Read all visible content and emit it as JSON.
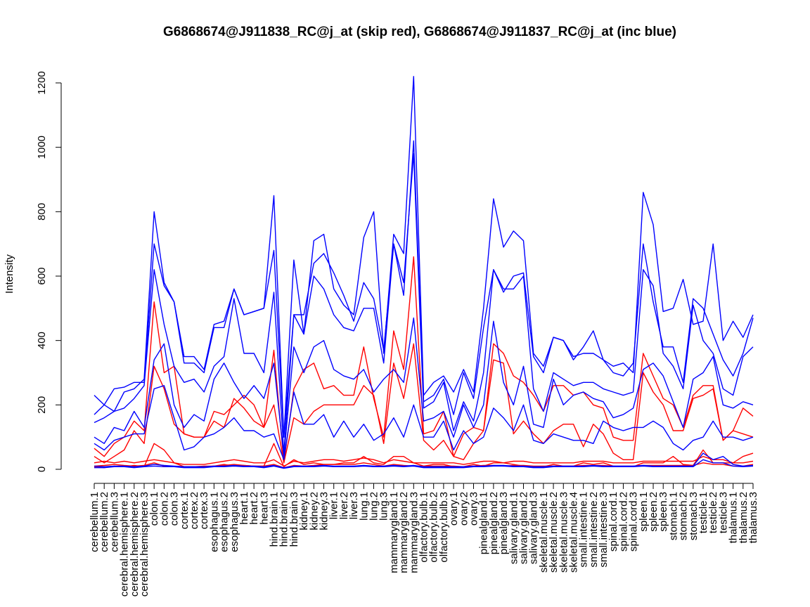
{
  "chart_data": {
    "type": "line",
    "title": "G6868674@J911838_RC@j_at (skip red), G6868674@J911837_RC@j_at (inc blue)",
    "xlabel": "",
    "ylabel": "Intensity",
    "ylim": [
      0,
      1200
    ],
    "yticks": [
      0,
      200,
      400,
      600,
      800,
      1000,
      1200
    ],
    "grid": false,
    "legend": "none",
    "colors": {
      "skip": "#ff0000",
      "inc": "#0000ff",
      "axis": "#000000"
    },
    "categories": [
      "cerebellum.1",
      "cerebellum.2",
      "cerebellum.3",
      "cerebral.hemisphere.1",
      "cerebral.hemisphere.2",
      "cerebral.hemisphere.3",
      "colon.1",
      "colon.2",
      "colon.3",
      "cortex.1",
      "cortex.2",
      "cortex.3",
      "esophagus.1",
      "esophagus.2",
      "esophagus.3",
      "heart.1",
      "heart.2",
      "heart.3",
      "hind.brain.1",
      "hind.brain.2",
      "hind.brain.3",
      "kidney.1",
      "kidney.2",
      "kidney.3",
      "liver.1",
      "liver.2",
      "liver.3",
      "lung.1",
      "lung.2",
      "lung.3",
      "mammarygland.1",
      "mammarygland.2",
      "mammarygland.3",
      "olfactory.bulb.1",
      "olfactory.bulb.2",
      "olfactory.bulb.3",
      "ovary.1",
      "ovary.2",
      "ovary.3",
      "pinealgland.1",
      "pinealgland.2",
      "pinealgland.3",
      "salivary.gland.1",
      "salivary.gland.2",
      "salivary.gland.3",
      "skeletal.muscle.1",
      "skeletal.muscle.2",
      "skeletal.muscle.3",
      "skeletal.muscle.4",
      "small.intestine.1",
      "small.intestine.2",
      "small.intestine.3",
      "spinal.cord.1",
      "spinal.cord.2",
      "spinal.cord.3",
      "spleen.1",
      "spleen.2",
      "spleen.3",
      "stomach.1",
      "stomach.2",
      "stomach.3",
      "testicle.1",
      "testicle.2",
      "testicle.3",
      "thalamus.1",
      "thalamus.2",
      "thalamus.3"
    ],
    "series": [
      {
        "group": "skip",
        "values": [
          10,
          12,
          15,
          12,
          10,
          12,
          20,
          10,
          8,
          8,
          8,
          8,
          10,
          12,
          15,
          12,
          10,
          10,
          15,
          5,
          12,
          10,
          12,
          15,
          15,
          15,
          15,
          20,
          15,
          10,
          15,
          12,
          10,
          10,
          10,
          10,
          10,
          8,
          10,
          12,
          12,
          10,
          12,
          12,
          10,
          10,
          10,
          10,
          10,
          12,
          12,
          12,
          10,
          10,
          10,
          12,
          12,
          12,
          12,
          12,
          12,
          20,
          15,
          15,
          10,
          10,
          15
        ]
      },
      {
        "group": "skip",
        "values": [
          20,
          25,
          20,
          25,
          20,
          25,
          30,
          25,
          20,
          15,
          15,
          15,
          20,
          25,
          30,
          25,
          20,
          20,
          30,
          10,
          25,
          20,
          25,
          30,
          30,
          25,
          30,
          35,
          30,
          20,
          30,
          25,
          20,
          20,
          20,
          20,
          20,
          15,
          20,
          25,
          25,
          20,
          25,
          25,
          20,
          20,
          20,
          20,
          20,
          25,
          25,
          25,
          20,
          20,
          20,
          25,
          25,
          25,
          25,
          25,
          25,
          40,
          30,
          30,
          20,
          20,
          25
        ]
      },
      {
        "group": "skip",
        "values": [
          40,
          20,
          40,
          60,
          120,
          80,
          320,
          250,
          140,
          110,
          100,
          100,
          150,
          130,
          220,
          190,
          150,
          130,
          200,
          20,
          160,
          140,
          180,
          200,
          200,
          200,
          200,
          260,
          230,
          80,
          330,
          220,
          390,
          90,
          60,
          90,
          40,
          30,
          80,
          120,
          340,
          330,
          110,
          150,
          110,
          80,
          120,
          140,
          140,
          70,
          140,
          110,
          50,
          30,
          30,
          300,
          240,
          200,
          120,
          120,
          220,
          230,
          250,
          90,
          120,
          110,
          100
        ]
      },
      {
        "group": "skip",
        "values": [
          65,
          40,
          80,
          100,
          150,
          120,
          520,
          300,
          320,
          110,
          100,
          100,
          180,
          170,
          200,
          230,
          200,
          130,
          370,
          20,
          250,
          310,
          330,
          250,
          260,
          230,
          230,
          380,
          220,
          100,
          430,
          310,
          660,
          110,
          120,
          180,
          40,
          110,
          130,
          120,
          390,
          360,
          290,
          270,
          230,
          180,
          260,
          260,
          230,
          240,
          200,
          190,
          100,
          90,
          90,
          360,
          290,
          220,
          200,
          130,
          230,
          260,
          260,
          90,
          120,
          190,
          165
        ]
      },
      {
        "group": "skip",
        "values": [
          8,
          5,
          10,
          8,
          12,
          8,
          80,
          60,
          20,
          8,
          8,
          10,
          10,
          15,
          10,
          12,
          10,
          10,
          80,
          8,
          30,
          15,
          20,
          15,
          15,
          20,
          20,
          40,
          20,
          15,
          40,
          40,
          20,
          10,
          15,
          15,
          8,
          8,
          15,
          10,
          20,
          20,
          15,
          10,
          8,
          8,
          15,
          10,
          10,
          20,
          15,
          20,
          10,
          8,
          8,
          20,
          20,
          20,
          40,
          15,
          12,
          60,
          20,
          20,
          20,
          40,
          50
        ]
      },
      {
        "group": "inc",
        "values": [
          230,
          200,
          250,
          255,
          270,
          270,
          700,
          570,
          520,
          350,
          350,
          310,
          450,
          460,
          560,
          480,
          490,
          500,
          850,
          100,
          650,
          420,
          710,
          730,
          560,
          510,
          480,
          720,
          800,
          360,
          730,
          670,
          1220,
          230,
          270,
          290,
          240,
          310,
          240,
          500,
          840,
          690,
          740,
          710,
          360,
          320,
          410,
          400,
          340,
          380,
          430,
          340,
          320,
          330,
          300,
          860,
          760,
          490,
          500,
          590,
          450,
          460,
          700,
          400,
          460,
          410,
          480
        ]
      },
      {
        "group": "inc",
        "values": [
          170,
          200,
          180,
          240,
          250,
          280,
          800,
          580,
          520,
          330,
          330,
          300,
          440,
          440,
          560,
          480,
          490,
          500,
          680,
          100,
          480,
          480,
          640,
          670,
          610,
          540,
          460,
          580,
          530,
          370,
          700,
          540,
          1020,
          210,
          230,
          280,
          170,
          300,
          220,
          440,
          620,
          550,
          600,
          610,
          350,
          300,
          410,
          400,
          350,
          360,
          360,
          340,
          300,
          290,
          330,
          700,
          520,
          380,
          380,
          270,
          530,
          500,
          420,
          340,
          290,
          360,
          470
        ]
      },
      {
        "group": "inc",
        "values": [
          145,
          160,
          180,
          190,
          220,
          260,
          620,
          450,
          320,
          270,
          280,
          240,
          320,
          350,
          530,
          360,
          360,
          300,
          550,
          50,
          480,
          420,
          600,
          560,
          480,
          440,
          430,
          500,
          500,
          330,
          700,
          580,
          980,
          190,
          210,
          270,
          120,
          210,
          150,
          300,
          620,
          560,
          560,
          600,
          250,
          180,
          300,
          280,
          260,
          270,
          270,
          250,
          240,
          230,
          240,
          620,
          570,
          360,
          320,
          250,
          510,
          400,
          360,
          250,
          230,
          350,
          380
        ]
      },
      {
        "group": "inc",
        "values": [
          100,
          80,
          130,
          120,
          180,
          130,
          340,
          390,
          200,
          130,
          170,
          150,
          280,
          330,
          270,
          220,
          260,
          220,
          330,
          40,
          380,
          300,
          380,
          400,
          310,
          290,
          280,
          310,
          240,
          280,
          310,
          270,
          470,
          150,
          160,
          180,
          100,
          200,
          130,
          200,
          460,
          270,
          200,
          320,
          140,
          130,
          280,
          200,
          230,
          240,
          220,
          210,
          160,
          170,
          190,
          310,
          330,
          290,
          210,
          130,
          280,
          300,
          350,
          200,
          190,
          210,
          200
        ]
      },
      {
        "group": "inc",
        "values": [
          80,
          60,
          90,
          100,
          110,
          110,
          250,
          260,
          160,
          60,
          70,
          100,
          110,
          130,
          160,
          120,
          120,
          100,
          110,
          30,
          240,
          140,
          140,
          170,
          100,
          150,
          100,
          140,
          90,
          110,
          160,
          100,
          200,
          100,
          100,
          150,
          60,
          120,
          80,
          100,
          190,
          160,
          120,
          200,
          90,
          80,
          110,
          100,
          90,
          90,
          80,
          150,
          130,
          120,
          130,
          130,
          150,
          130,
          80,
          60,
          90,
          100,
          150,
          100,
          100,
          90,
          100
        ]
      },
      {
        "group": "inc",
        "values": [
          10,
          8,
          10,
          10,
          8,
          10,
          15,
          12,
          10,
          8,
          8,
          8,
          10,
          10,
          12,
          10,
          10,
          8,
          12,
          5,
          10,
          10,
          10,
          12,
          10,
          10,
          10,
          12,
          10,
          10,
          12,
          10,
          12,
          8,
          8,
          8,
          8,
          8,
          10,
          10,
          12,
          12,
          10,
          10,
          8,
          8,
          10,
          10,
          10,
          10,
          12,
          10,
          10,
          10,
          10,
          12,
          10,
          10,
          10,
          10,
          10,
          50,
          30,
          40,
          15,
          10,
          12
        ]
      },
      {
        "group": "inc",
        "values": [
          5,
          5,
          8,
          8,
          5,
          8,
          10,
          8,
          8,
          5,
          5,
          5,
          8,
          8,
          10,
          8,
          8,
          5,
          10,
          3,
          8,
          8,
          8,
          10,
          8,
          8,
          8,
          10,
          8,
          8,
          10,
          8,
          10,
          5,
          5,
          5,
          5,
          5,
          8,
          8,
          10,
          10,
          8,
          8,
          5,
          5,
          8,
          8,
          8,
          8,
          10,
          8,
          8,
          8,
          8,
          10,
          8,
          8,
          8,
          8,
          8,
          30,
          20,
          20,
          10,
          8,
          10
        ]
      }
    ]
  }
}
